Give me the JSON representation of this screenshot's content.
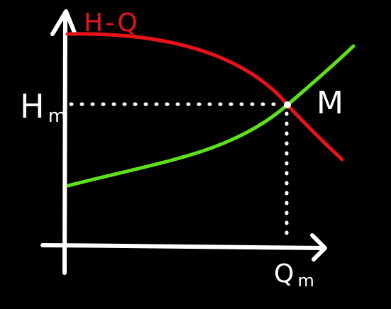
{
  "diagram": {
    "background_color": "#000000",
    "axis_color": "#ffffff",
    "pump_curve": {
      "label": "H-Q",
      "color": "#e8121a"
    },
    "system_curve": {
      "color": "#5fe01e"
    },
    "operating_point": {
      "label": "M",
      "head_label_main": "H",
      "head_label_sub": "m",
      "flow_label_main": "Q",
      "flow_label_sub": "m"
    }
  }
}
